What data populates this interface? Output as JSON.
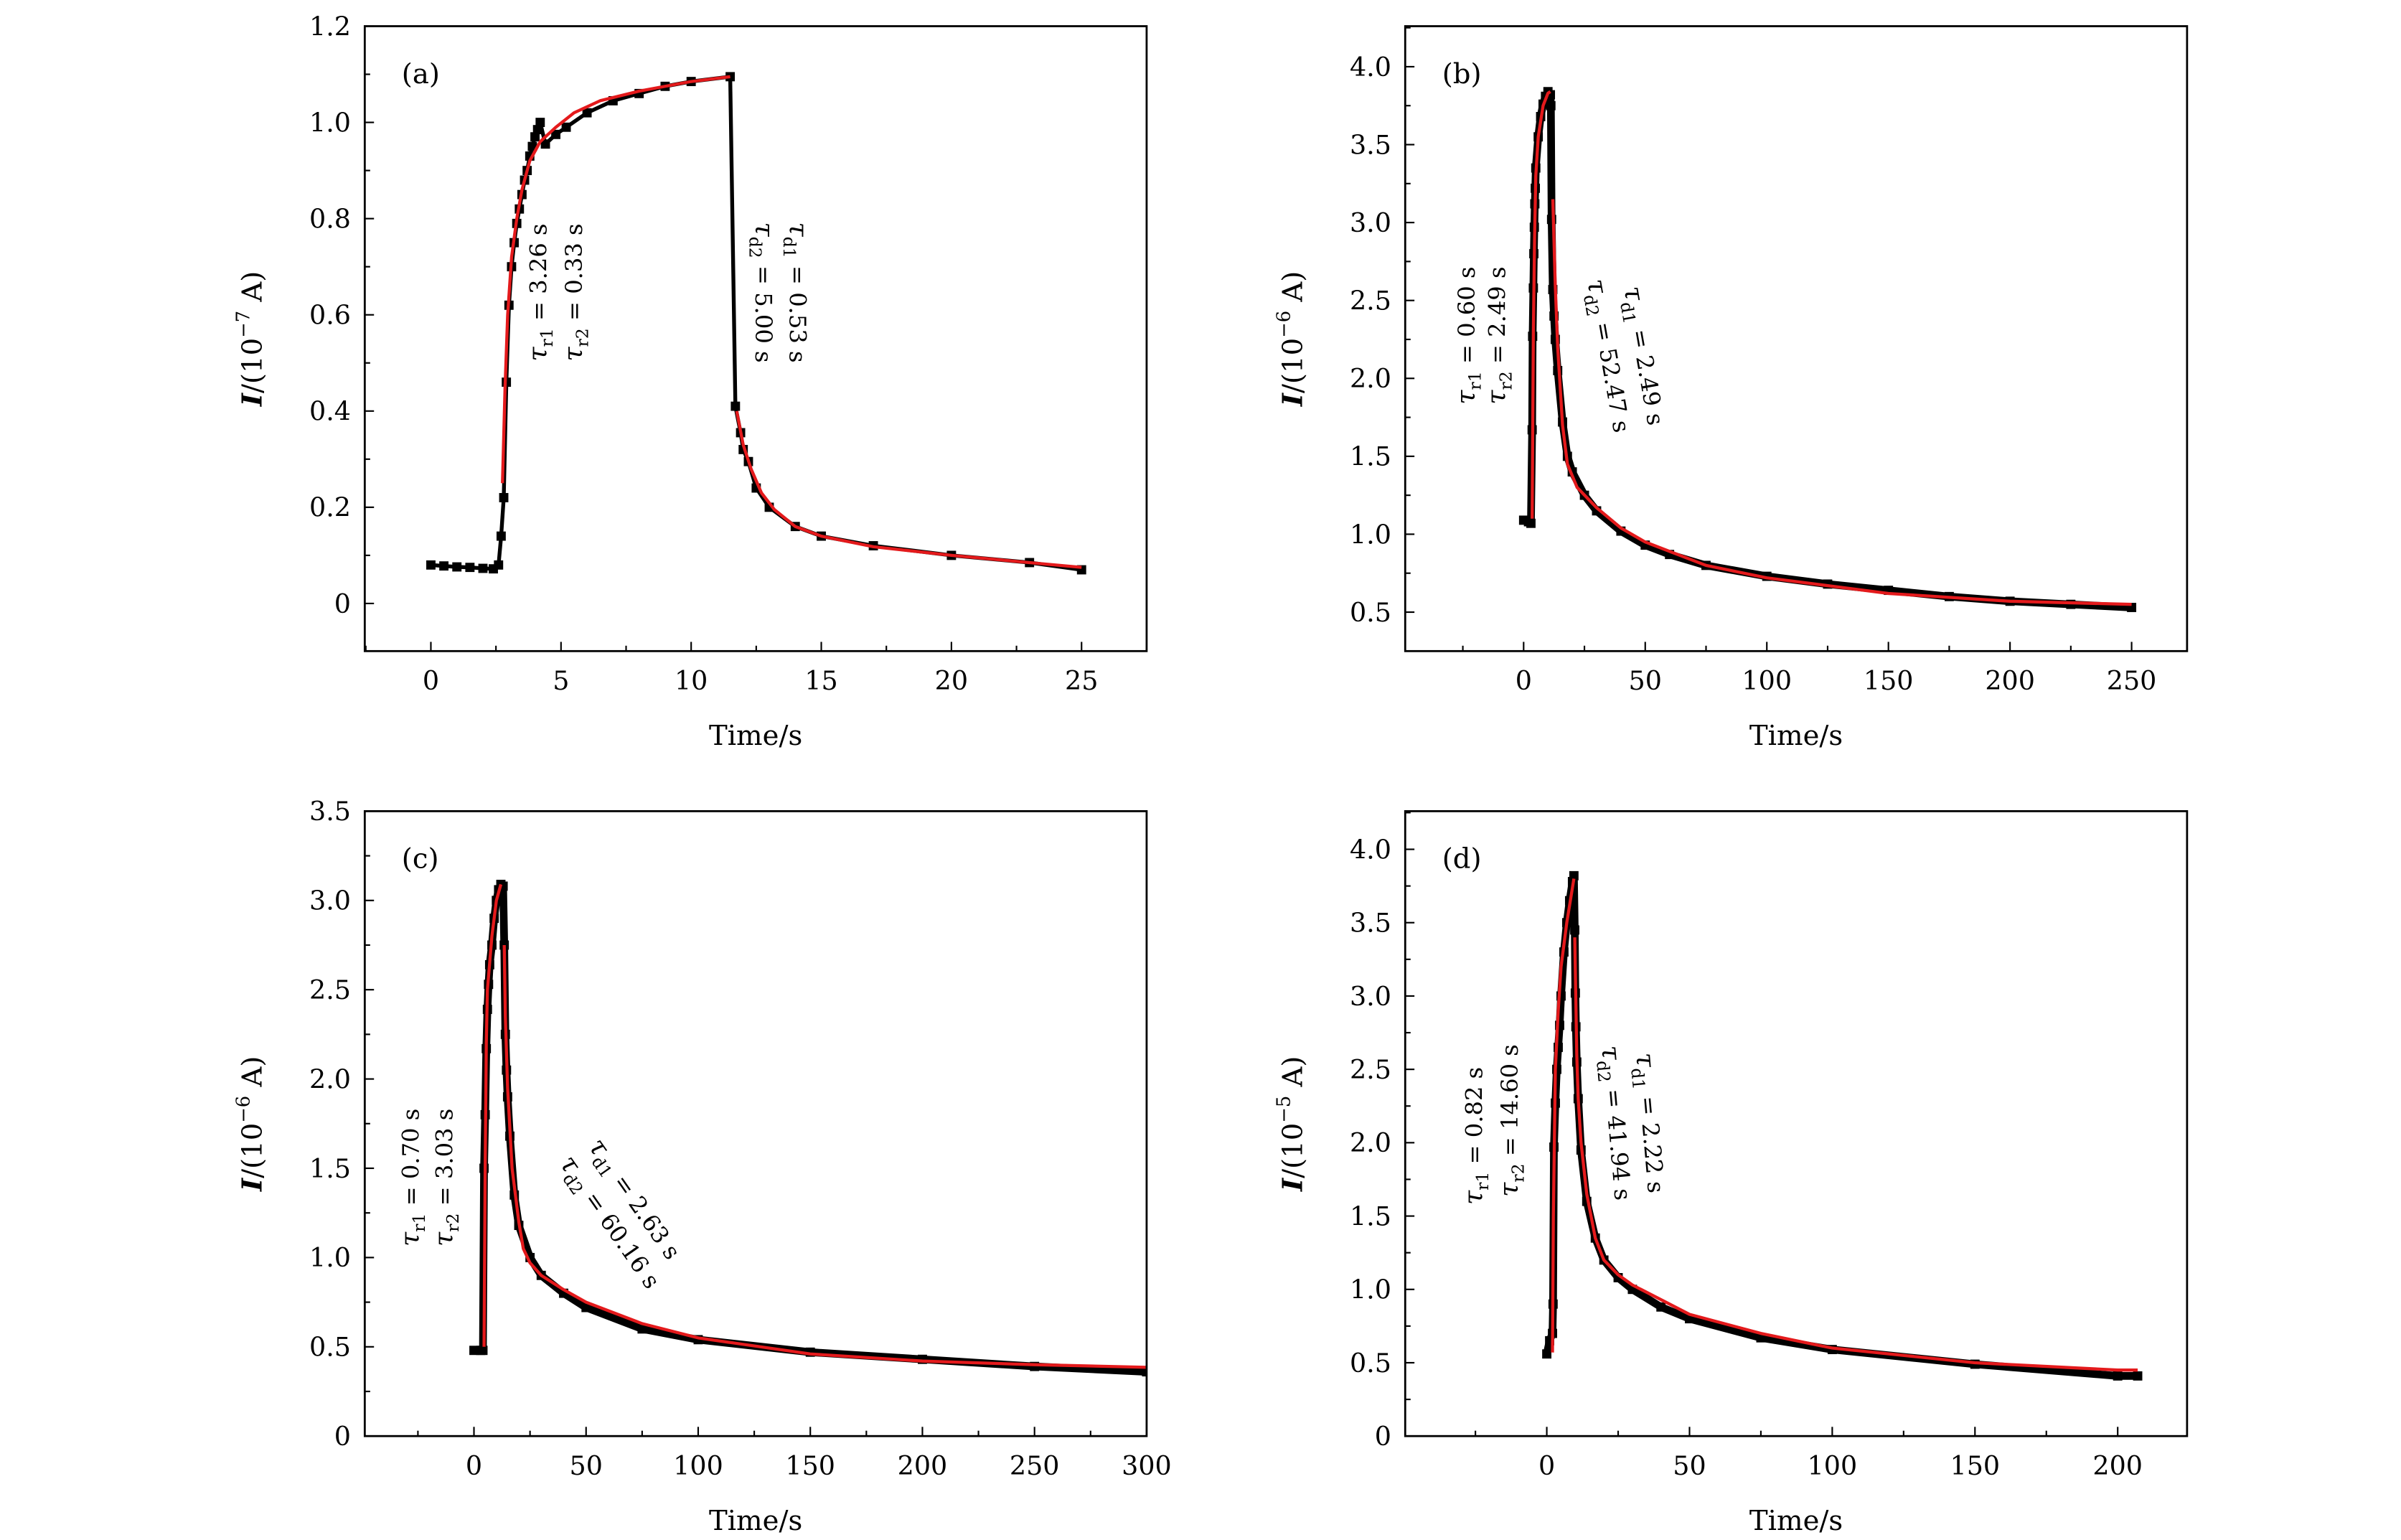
{
  "chart_data": [
    {
      "type": "line",
      "panel_label": "(a)",
      "xlabel": "Time/s",
      "ylabel": {
        "var": "I",
        "prefix": "/(10",
        "exp": "−7",
        "suffix": " A)"
      },
      "xlim": [
        -2.54,
        27.5
      ],
      "ylim": [
        -0.099,
        1.2
      ],
      "xticks": [
        0,
        5,
        10,
        15,
        20,
        25
      ],
      "xtick_labels": [
        "0",
        "5",
        "10",
        "15",
        "20",
        "25"
      ],
      "x_minor_step": 2.5,
      "yticks": [
        0,
        0.2,
        0.4,
        0.6,
        0.8,
        1.0,
        1.2
      ],
      "ytick_labels": [
        "0",
        "0.2",
        "0.4",
        "0.6",
        "0.8",
        "1.0",
        "1.2"
      ],
      "y_minor_step": 0.1,
      "series": [
        {
          "role": "measured",
          "color": "#000000",
          "x": [
            0,
            0.5,
            1,
            1.5,
            2,
            2.4,
            2.6,
            2.7,
            2.8,
            2.9,
            3.0,
            3.1,
            3.2,
            3.3,
            3.4,
            3.5,
            3.6,
            3.7,
            3.8,
            3.9,
            4.0,
            4.1,
            4.2,
            4.4,
            4.8,
            5.2,
            6,
            7,
            8,
            9,
            10,
            11.5,
            11.7,
            11.9,
            12.0,
            12.2,
            12.5,
            13,
            14,
            15,
            17,
            20,
            23,
            25
          ],
          "y": [
            0.08,
            0.078,
            0.076,
            0.075,
            0.073,
            0.072,
            0.08,
            0.14,
            0.22,
            0.46,
            0.62,
            0.7,
            0.75,
            0.79,
            0.82,
            0.85,
            0.88,
            0.9,
            0.93,
            0.95,
            0.97,
            0.985,
            1.0,
            0.955,
            0.975,
            0.99,
            1.02,
            1.045,
            1.06,
            1.075,
            1.085,
            1.095,
            0.41,
            0.355,
            0.32,
            0.295,
            0.24,
            0.2,
            0.16,
            0.14,
            0.12,
            0.1,
            0.085,
            0.07
          ]
        },
        {
          "role": "fit",
          "color": "#e41a1c",
          "x": [
            2.75,
            2.85,
            2.95,
            3.1,
            3.3,
            3.5,
            3.8,
            4.2,
            4.8,
            5.5,
            6.5,
            8,
            10,
            11.5
          ],
          "y": [
            0.25,
            0.45,
            0.6,
            0.72,
            0.8,
            0.86,
            0.92,
            0.96,
            0.99,
            1.02,
            1.045,
            1.065,
            1.085,
            1.095
          ]
        },
        {
          "role": "fit",
          "color": "#e41a1c",
          "x": [
            11.75,
            12,
            12.3,
            12.7,
            13.2,
            14,
            15,
            17,
            20,
            23,
            25
          ],
          "y": [
            0.4,
            0.33,
            0.28,
            0.23,
            0.195,
            0.16,
            0.14,
            0.118,
            0.1,
            0.085,
            0.075
          ]
        }
      ],
      "annotations": [
        {
          "sym": "τ",
          "sub": "r1",
          "value": " = 3.26 s"
        },
        {
          "sym": "τ",
          "sub": "r2",
          "value": " = 0.33 s"
        },
        {
          "sym": "τ",
          "sub": "d1",
          "value": " = 0.53 s"
        },
        {
          "sym": "τ",
          "sub": "d2",
          "value": " = 5.00 s"
        }
      ]
    },
    {
      "type": "line",
      "panel_label": "(b)",
      "xlabel": "Time/s",
      "ylabel": {
        "var": "I",
        "prefix": "/(10",
        "exp": "−6",
        "suffix": " A)"
      },
      "xlim": [
        -48.7,
        272.8
      ],
      "ylim": [
        0.25,
        4.26
      ],
      "xticks": [
        0,
        50,
        100,
        150,
        200,
        250
      ],
      "xtick_labels": [
        "0",
        "50",
        "100",
        "150",
        "200",
        "250"
      ],
      "x_minor_step": 25,
      "yticks": [
        0.5,
        1.0,
        1.5,
        2.0,
        2.5,
        3.0,
        3.5,
        4.0
      ],
      "ytick_labels": [
        "0.5",
        "1.0",
        "1.5",
        "2.0",
        "2.5",
        "3.0",
        "3.5",
        "4.0"
      ],
      "y_minor_step": 0.25,
      "series": [
        {
          "role": "measured",
          "color": "#000000",
          "x": [
            0,
            2,
            3,
            3.5,
            3.7,
            4,
            4.2,
            4.4,
            4.6,
            4.8,
            5,
            6,
            7,
            8,
            9,
            10,
            11,
            11.2,
            11.5,
            12,
            12.5,
            13,
            14,
            16,
            18,
            20,
            25,
            30,
            40,
            50,
            60,
            75,
            100,
            125,
            150,
            175,
            200,
            225,
            250
          ],
          "y": [
            1.09,
            1.08,
            1.07,
            1.67,
            2.27,
            2.58,
            2.8,
            2.97,
            3.12,
            3.22,
            3.35,
            3.55,
            3.68,
            3.76,
            3.81,
            3.84,
            3.82,
            3.75,
            3.02,
            2.57,
            2.4,
            2.25,
            2.05,
            1.72,
            1.5,
            1.4,
            1.25,
            1.15,
            1.02,
            0.93,
            0.87,
            0.8,
            0.73,
            0.68,
            0.64,
            0.6,
            0.57,
            0.55,
            0.53
          ]
        },
        {
          "role": "fit",
          "color": "#e41a1c",
          "x": [
            3.5,
            4,
            4.5,
            5,
            6,
            8,
            10,
            11
          ],
          "y": [
            1.1,
            2.3,
            2.9,
            3.3,
            3.55,
            3.75,
            3.83,
            3.84
          ]
        },
        {
          "role": "fit",
          "color": "#e41a1c",
          "x": [
            12,
            13,
            14,
            16,
            18,
            22,
            30,
            40,
            50,
            75,
            100,
            150,
            200,
            250
          ],
          "y": [
            3.15,
            2.6,
            2.2,
            1.7,
            1.45,
            1.3,
            1.17,
            1.04,
            0.95,
            0.8,
            0.72,
            0.62,
            0.57,
            0.55
          ]
        }
      ],
      "annotations": [
        {
          "sym": "τ",
          "sub": "r1",
          "value": " = 0.60 s"
        },
        {
          "sym": "τ",
          "sub": "r2",
          "value": " = 2.49 s"
        },
        {
          "sym": "τ",
          "sub": "d1",
          "value": " =  2.49 s"
        },
        {
          "sym": "τ",
          "sub": "d2",
          "value": " = 52.47 s"
        }
      ]
    },
    {
      "type": "line",
      "panel_label": "(c)",
      "xlabel": "Time/s",
      "ylabel": {
        "var": "I",
        "prefix": "/(10",
        "exp": "−6",
        "suffix": " A)"
      },
      "xlim": [
        -48.7,
        300
      ],
      "ylim": [
        0,
        3.5
      ],
      "xticks": [
        0,
        50,
        100,
        150,
        200,
        250,
        300
      ],
      "xtick_labels": [
        "0",
        "50",
        "100",
        "150",
        "200",
        "250",
        "300"
      ],
      "x_minor_step": 25,
      "yticks": [
        0,
        0.5,
        1.0,
        1.5,
        2.0,
        2.5,
        3.0,
        3.5
      ],
      "ytick_labels": [
        "0",
        "0.5",
        "1.0",
        "1.5",
        "2.0",
        "2.5",
        "3.0",
        "3.5"
      ],
      "y_minor_step": 0.25,
      "series": [
        {
          "role": "measured",
          "color": "#000000",
          "x": [
            0,
            3,
            4,
            4.5,
            5,
            5.5,
            6,
            6.5,
            7,
            8,
            9,
            10,
            11,
            12,
            13,
            13.5,
            14,
            14.5,
            15,
            16,
            18,
            20,
            25,
            30,
            40,
            50,
            75,
            100,
            150,
            200,
            250,
            300
          ],
          "y": [
            0.48,
            0.48,
            0.48,
            1.5,
            1.8,
            2.17,
            2.39,
            2.53,
            2.64,
            2.75,
            2.9,
            3.0,
            3.06,
            3.09,
            3.08,
            2.75,
            2.25,
            2.05,
            1.9,
            1.68,
            1.35,
            1.18,
            1.0,
            0.9,
            0.8,
            0.72,
            0.6,
            0.54,
            0.47,
            0.43,
            0.39,
            0.36
          ]
        },
        {
          "role": "fit",
          "color": "#e41a1c",
          "x": [
            4.5,
            5,
            5.5,
            6,
            8,
            10,
            12
          ],
          "y": [
            0.5,
            1.5,
            2.2,
            2.5,
            2.8,
            3.0,
            3.09
          ]
        },
        {
          "role": "fit",
          "color": "#e41a1c",
          "x": [
            13.5,
            14,
            15,
            17,
            20,
            22,
            25,
            30,
            40,
            50,
            75,
            100,
            150,
            200,
            250,
            300
          ],
          "y": [
            2.75,
            2.35,
            1.95,
            1.5,
            1.2,
            1.05,
            0.97,
            0.9,
            0.82,
            0.75,
            0.63,
            0.55,
            0.46,
            0.42,
            0.4,
            0.385
          ]
        }
      ],
      "annotations": [
        {
          "sym": "τ",
          "sub": "r1",
          "value": " = 0.70 s"
        },
        {
          "sym": "τ",
          "sub": "r2",
          "value": " = 3.03 s"
        },
        {
          "sym": "τ",
          "sub": "d1",
          "value": " = 2.63 s"
        },
        {
          "sym": "τ",
          "sub": "d2",
          "value": " = 60.16 s"
        }
      ]
    },
    {
      "type": "line",
      "panel_label": "(d)",
      "xlabel": "Time/s",
      "ylabel": {
        "var": "I",
        "prefix": "/(10",
        "exp": "−5",
        "suffix": " A)"
      },
      "xlim": [
        -49.6,
        224.3
      ],
      "ylim": [
        0,
        4.26
      ],
      "xticks": [
        0,
        50,
        100,
        150,
        200
      ],
      "xtick_labels": [
        "0",
        "50",
        "100",
        "150",
        "200"
      ],
      "x_minor_step": 25,
      "yticks": [
        0,
        0.5,
        1.0,
        1.5,
        2.0,
        2.5,
        3.0,
        3.5,
        4.0
      ],
      "ytick_labels": [
        "0",
        "0.5",
        "1.0",
        "1.5",
        "2.0",
        "2.5",
        "3.0",
        "3.5",
        "4.0"
      ],
      "y_minor_step": 0.25,
      "series": [
        {
          "role": "measured",
          "color": "#000000",
          "x": [
            0,
            1,
            2,
            2.2,
            2.5,
            3,
            3.5,
            4,
            4.5,
            5,
            6,
            7,
            8,
            9,
            9.5,
            9.8,
            10,
            10.2,
            10.5,
            11,
            12,
            14,
            17,
            20,
            25,
            30,
            40,
            50,
            75,
            100,
            150,
            200,
            207
          ],
          "y": [
            0.56,
            0.65,
            0.7,
            0.9,
            1.97,
            2.27,
            2.5,
            2.65,
            2.8,
            3.0,
            3.3,
            3.5,
            3.65,
            3.78,
            3.82,
            3.45,
            3.02,
            2.79,
            2.55,
            2.3,
            1.95,
            1.6,
            1.35,
            1.2,
            1.08,
            1.0,
            0.88,
            0.8,
            0.67,
            0.59,
            0.49,
            0.41,
            0.41
          ]
        },
        {
          "role": "fit",
          "color": "#e41a1c",
          "x": [
            2,
            2.3,
            3,
            4,
            5,
            7,
            9.5
          ],
          "y": [
            0.57,
            1.5,
            2.5,
            2.9,
            3.2,
            3.5,
            3.8
          ]
        },
        {
          "role": "fit",
          "color": "#e41a1c",
          "x": [
            9.8,
            10.5,
            11,
            12,
            14,
            17,
            20,
            25,
            30,
            40,
            50,
            75,
            100,
            150,
            200,
            207
          ],
          "y": [
            3.4,
            2.6,
            2.3,
            2.0,
            1.65,
            1.35,
            1.2,
            1.1,
            1.03,
            0.93,
            0.83,
            0.7,
            0.6,
            0.5,
            0.45,
            0.45
          ]
        }
      ],
      "annotations": [
        {
          "sym": "τ",
          "sub": "r1",
          "value": " = 0.82 s"
        },
        {
          "sym": "τ",
          "sub": "r2",
          "value": " = 14.60 s"
        },
        {
          "sym": "τ",
          "sub": "d1",
          "value": " = 2.22 s"
        },
        {
          "sym": "τ",
          "sub": "d2",
          "value": " = 41.94 s"
        }
      ]
    }
  ]
}
